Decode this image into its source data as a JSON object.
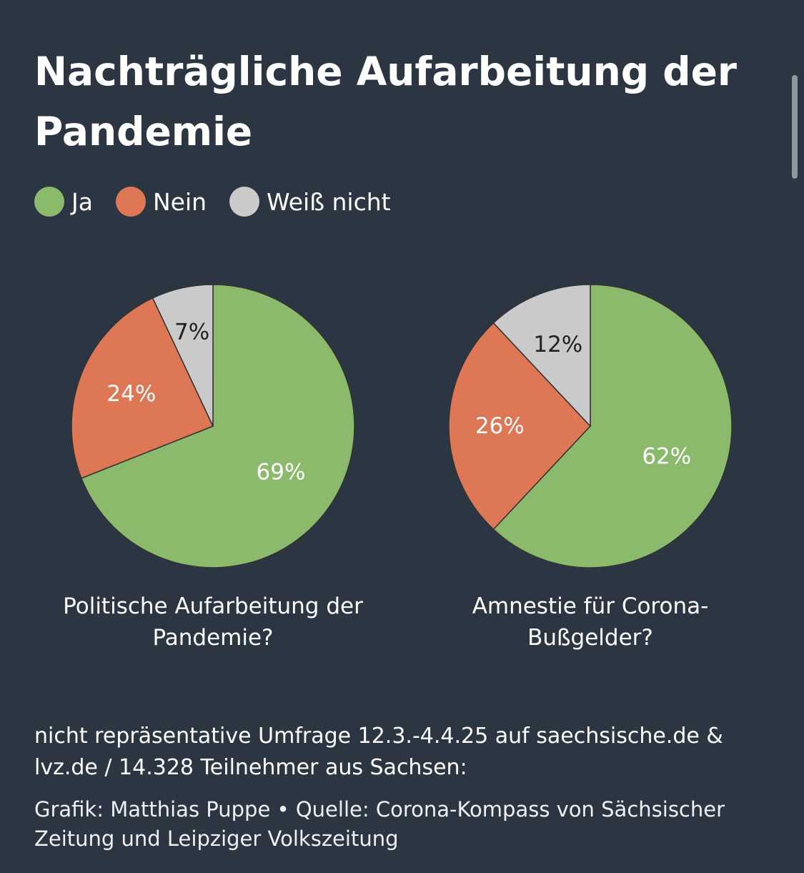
{
  "title": "Nachträgliche Aufarbeitung der Pandemie",
  "legend": [
    {
      "label": "Ja",
      "color": "#8bba6d"
    },
    {
      "label": "Nein",
      "color": "#de7755"
    },
    {
      "label": "Weiß nicht",
      "color": "#cacaca"
    }
  ],
  "chart_data": [
    {
      "type": "pie",
      "title": "Politische Aufarbeitung der Pandemie?",
      "slices": [
        {
          "label": "Ja",
          "value": 69,
          "text": "69%",
          "color": "#8bba6d"
        },
        {
          "label": "Nein",
          "value": 24,
          "text": "24%",
          "color": "#de7755"
        },
        {
          "label": "Weiß nicht",
          "value": 7,
          "text": "7%",
          "color": "#cacaca"
        }
      ]
    },
    {
      "type": "pie",
      "title": "Amnestie für Corona-Bußgelder?",
      "slices": [
        {
          "label": "Ja",
          "value": 62,
          "text": "62%",
          "color": "#8bba6d"
        },
        {
          "label": "Nein",
          "value": 26,
          "text": "26%",
          "color": "#de7755"
        },
        {
          "label": "Weiß nicht",
          "value": 12,
          "text": "12%",
          "color": "#cacaca"
        }
      ]
    }
  ],
  "footer": {
    "note": "nicht repräsentative Umfrage 12.3.-4.4.25 auf saechsische.de & lvz.de / 14.328 Teilnehmer aus Sachsen:",
    "credit": "Grafik: Matthias Puppe • Quelle: Corona-Kompass von Sächsischer Zeitung und Leipziger Volkszeitung"
  }
}
